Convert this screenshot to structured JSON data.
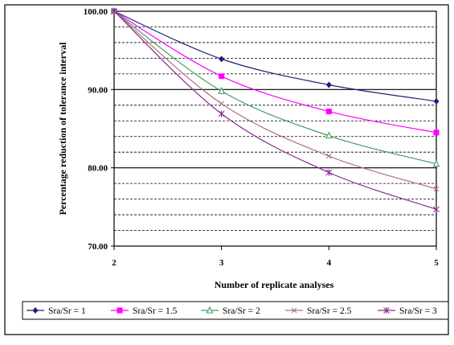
{
  "chart_data": {
    "type": "line",
    "title": "",
    "xlabel": "Number of replicate analyses",
    "ylabel": "Percentage reduction of tolerance interval",
    "x": [
      2,
      3,
      4,
      5
    ],
    "x_tick_labels": [
      "2",
      "3",
      "4",
      "5"
    ],
    "xlim": [
      2,
      5
    ],
    "ylim": [
      70,
      100
    ],
    "y_tick_labels": [
      "70.00",
      "80.00",
      "90.00",
      "100.00"
    ],
    "y_major_ticks": [
      70,
      80,
      90,
      100
    ],
    "y_minor_gridlines": [
      72,
      74,
      76,
      78,
      82,
      84,
      86,
      88,
      92,
      94,
      96,
      98
    ],
    "grid": true,
    "legend_position": "bottom",
    "series": [
      {
        "name": "Sra/Sr = 1",
        "values": [
          100,
          93.9,
          90.6,
          88.5
        ],
        "color": "#1f1f7a",
        "marker": "diamond"
      },
      {
        "name": "Sra/Sr = 1.5",
        "values": [
          100,
          91.7,
          87.2,
          84.5
        ],
        "color": "#ff00ff",
        "marker": "square"
      },
      {
        "name": "Sra/Sr = 2",
        "values": [
          100,
          89.8,
          84.1,
          80.5
        ],
        "color": "#3f9f5f",
        "marker": "triangle"
      },
      {
        "name": "Sra/Sr = 2.5",
        "values": [
          100,
          88.2,
          81.5,
          77.3
        ],
        "color": "#b07080",
        "marker": "cross"
      },
      {
        "name": "Sra/Sr = 3",
        "values": [
          100,
          86.9,
          79.4,
          74.7
        ],
        "color": "#8a2a8a",
        "marker": "star"
      }
    ]
  }
}
